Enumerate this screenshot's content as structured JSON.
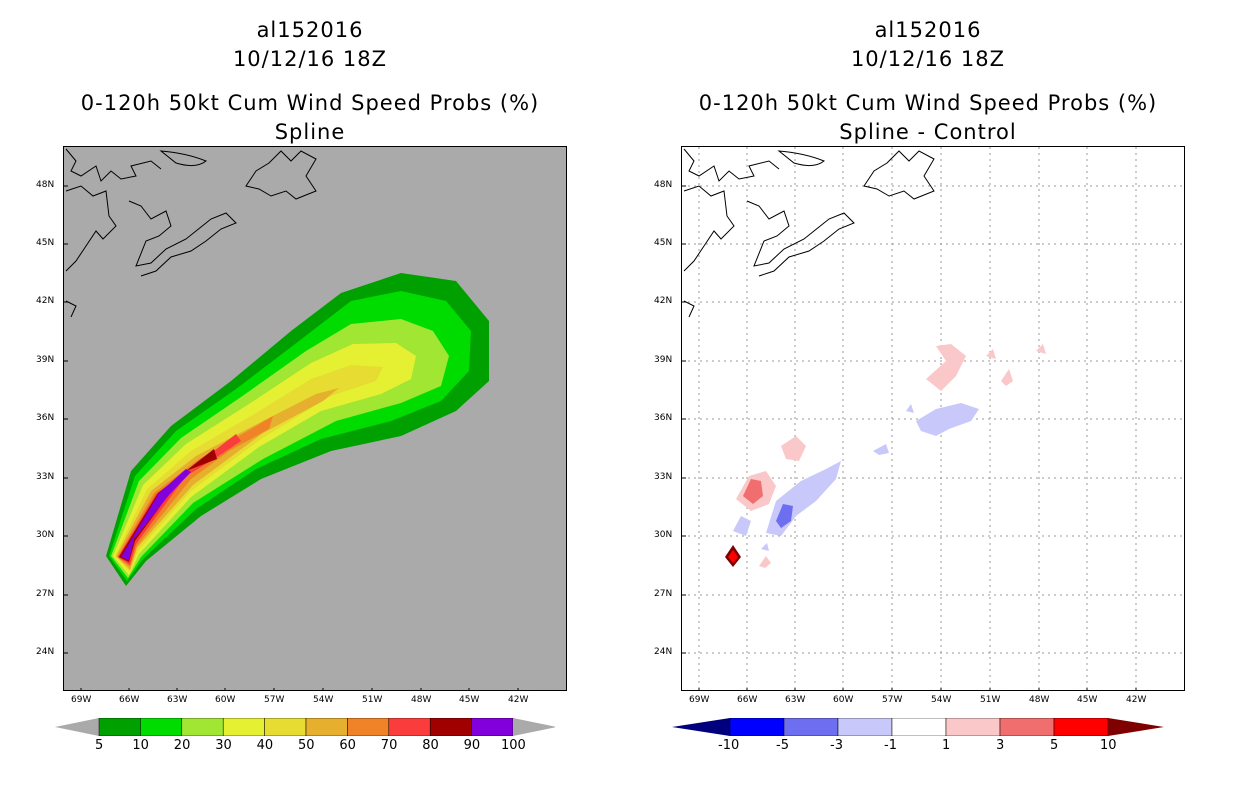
{
  "left_panel": {
    "storm_id": "al152016",
    "datetime": "10/12/16 18Z",
    "product": "0-120h 50kt Cum Wind Speed Probs (%)",
    "subtitle": "Spline",
    "legend_values": [
      "5",
      "10",
      "20",
      "30",
      "40",
      "50",
      "60",
      "70",
      "80",
      "90",
      "100"
    ],
    "legend_colors": [
      "#00a000",
      "#00dc00",
      "#a0e632",
      "#e6f032",
      "#e6dc32",
      "#e6af2d",
      "#f08228",
      "#fa3c3c",
      "#a00000",
      "#8200dc"
    ]
  },
  "right_panel": {
    "storm_id": "al152016",
    "datetime": "10/12/16 18Z",
    "product": "0-120h 50kt Cum Wind Speed Probs (%)",
    "subtitle": "Spline - Control",
    "legend_values": [
      "-10",
      "-5",
      "-3",
      "-1",
      "1",
      "3",
      "5",
      "10"
    ],
    "legend_colors": [
      "#00007f",
      "#0000ff",
      "#6e6ef0",
      "#c8c8fa",
      "#ffffff",
      "#fac8c8",
      "#f06e6e",
      "#ff0000",
      "#7f0000"
    ]
  },
  "axes": {
    "lat_labels": [
      "48N",
      "45N",
      "42N",
      "39N",
      "36N",
      "33N",
      "30N",
      "27N",
      "24N"
    ],
    "lon_labels": [
      "69W",
      "66W",
      "63W",
      "60W",
      "57W",
      "54W",
      "51W",
      "48W",
      "45W",
      "42W"
    ]
  }
}
